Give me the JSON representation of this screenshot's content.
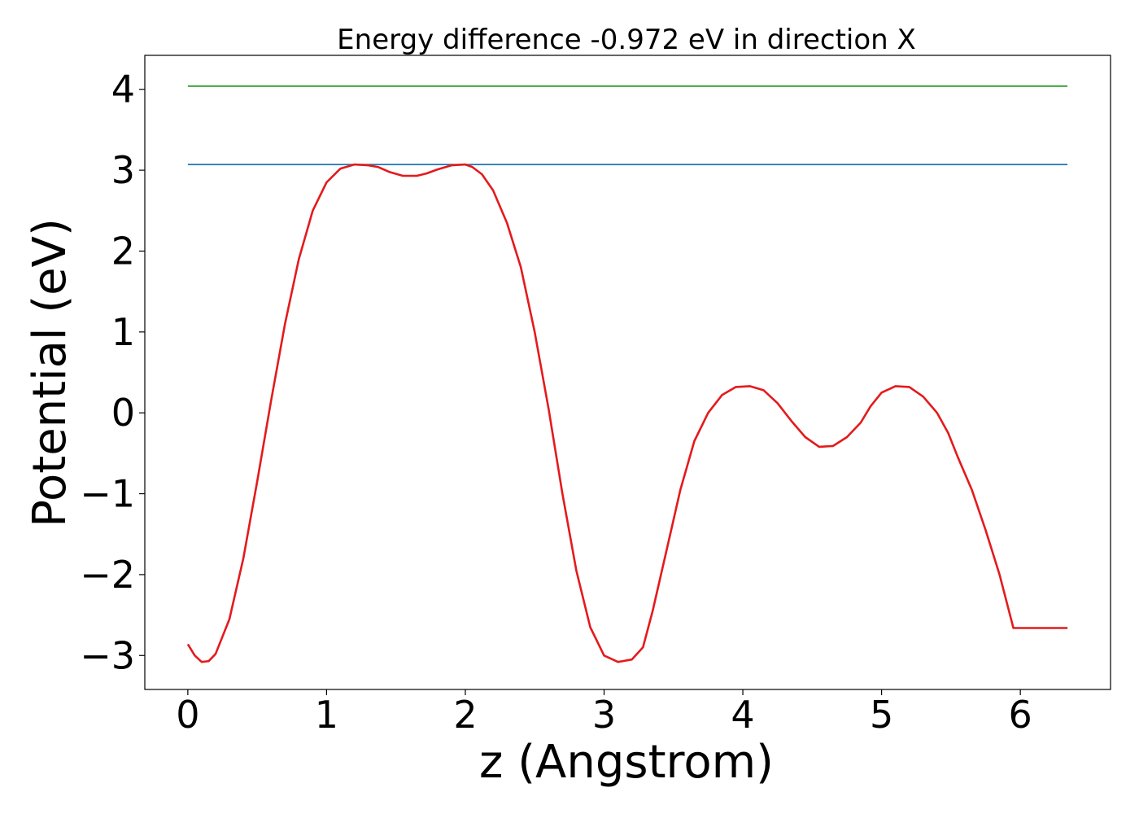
{
  "chart_data": {
    "type": "line",
    "title": "Energy difference -0.972 eV in direction X",
    "xlabel": "z (Angstrom)",
    "ylabel": "Potential (eV)",
    "xlim": [
      -0.31,
      6.65
    ],
    "ylim": [
      -3.42,
      4.42
    ],
    "xticks": [
      0,
      1,
      2,
      3,
      4,
      5,
      6
    ],
    "xtick_labels": [
      "0",
      "1",
      "2",
      "3",
      "4",
      "5",
      "6"
    ],
    "yticks": [
      -3,
      -2,
      -1,
      0,
      1,
      2,
      3,
      4
    ],
    "ytick_labels": [
      "−3",
      "−2",
      "−1",
      "0",
      "1",
      "2",
      "3",
      "4"
    ],
    "grid": false,
    "series": [
      {
        "color": "#1f77b4",
        "x": [
          0,
          6.34
        ],
        "y": [
          3.07,
          3.07
        ]
      },
      {
        "color": "#2ca02c",
        "x": [
          0,
          6.34
        ],
        "y": [
          4.04,
          4.04
        ]
      },
      {
        "color": "#e41a1c",
        "x": [
          0.0,
          0.05,
          0.1,
          0.15,
          0.2,
          0.3,
          0.4,
          0.5,
          0.6,
          0.7,
          0.8,
          0.9,
          1.0,
          1.1,
          1.2,
          1.3,
          1.37,
          1.45,
          1.55,
          1.65,
          1.72,
          1.8,
          1.9,
          2.0,
          2.05,
          2.12,
          2.2,
          2.3,
          2.4,
          2.5,
          2.6,
          2.7,
          2.8,
          2.9,
          3.0,
          3.1,
          3.2,
          3.28,
          3.35,
          3.45,
          3.55,
          3.65,
          3.75,
          3.85,
          3.95,
          4.05,
          4.15,
          4.25,
          4.35,
          4.45,
          4.55,
          4.65,
          4.75,
          4.85,
          4.92,
          5.0,
          5.1,
          5.2,
          5.3,
          5.4,
          5.48,
          5.55,
          5.65,
          5.75,
          5.85,
          5.95,
          6.05,
          6.15,
          6.25,
          6.34
        ],
        "y": [
          -2.86,
          -3.0,
          -3.08,
          -3.07,
          -2.98,
          -2.55,
          -1.8,
          -0.85,
          0.15,
          1.1,
          1.9,
          2.5,
          2.85,
          3.02,
          3.07,
          3.06,
          3.04,
          2.98,
          2.93,
          2.93,
          2.96,
          3.01,
          3.06,
          3.07,
          3.04,
          2.95,
          2.75,
          2.35,
          1.8,
          1.0,
          0.05,
          -1.0,
          -1.95,
          -2.65,
          -3.0,
          -3.08,
          -3.05,
          -2.9,
          -2.45,
          -1.7,
          -0.95,
          -0.35,
          0.0,
          0.22,
          0.32,
          0.33,
          0.28,
          0.12,
          -0.1,
          -0.3,
          -0.42,
          -0.41,
          -0.3,
          -0.12,
          0.08,
          0.25,
          0.33,
          0.32,
          0.2,
          0.0,
          -0.25,
          -0.55,
          -0.95,
          -1.45,
          -2.0,
          -2.66,
          -2.66,
          -2.66,
          -2.66,
          -2.66
        ]
      }
    ]
  }
}
